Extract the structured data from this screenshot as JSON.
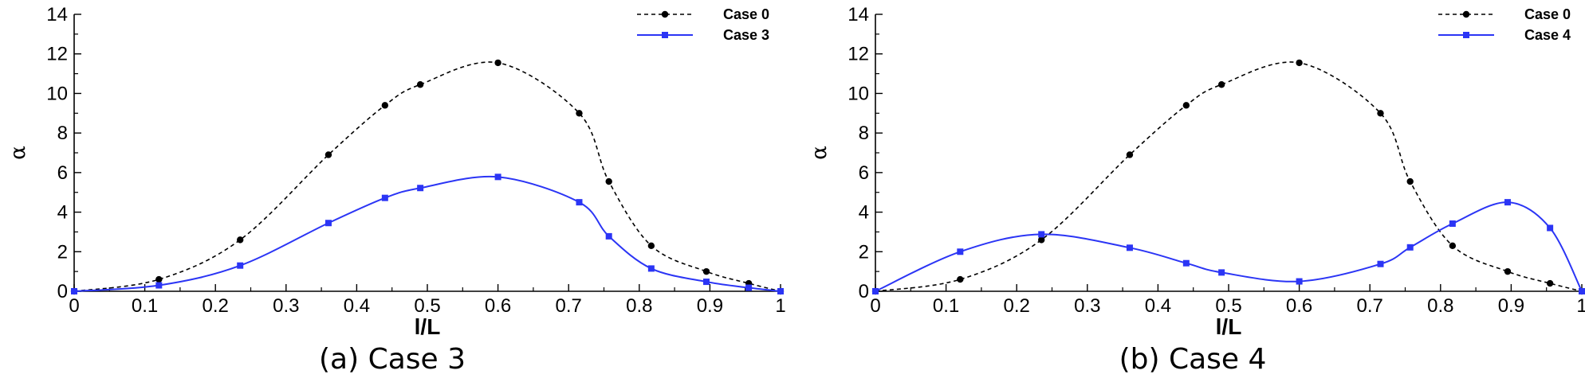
{
  "chart_data": [
    {
      "type": "line",
      "caption": "(a) Case 3",
      "xlabel": "l/L",
      "ylabel": "α",
      "xlim": [
        0,
        1
      ],
      "ylim": [
        0,
        14
      ],
      "xticks": [
        0,
        0.1,
        0.2,
        0.3,
        0.4,
        0.5,
        0.6,
        0.7,
        0.8,
        0.9,
        1
      ],
      "xtick_labels": [
        "0",
        "0.1",
        "0.2",
        "0.3",
        "0.4",
        "0.5",
        "0.6",
        "0.7",
        "0.8",
        "0.9",
        "1"
      ],
      "yticks": [
        0,
        2,
        4,
        6,
        8,
        10,
        12,
        14
      ],
      "ytick_labels": [
        "0",
        "2",
        "4",
        "6",
        "8",
        "10",
        "12",
        "14"
      ],
      "grid": false,
      "legend_position": "top-right",
      "series": [
        {
          "name": "Case 0",
          "color": "#000000",
          "line_style": "dashed",
          "marker": "circle",
          "x": [
            0,
            0.12,
            0.235,
            0.36,
            0.44,
            0.49,
            0.6,
            0.715,
            0.757,
            0.817,
            0.895,
            0.955,
            1
          ],
          "y": [
            0,
            0.6,
            2.6,
            6.9,
            9.4,
            10.45,
            11.55,
            9.0,
            5.55,
            2.3,
            1.0,
            0.4,
            0
          ]
        },
        {
          "name": "Case 3",
          "color": "#2b35f5",
          "line_style": "solid",
          "marker": "square",
          "x": [
            0,
            0.12,
            0.235,
            0.36,
            0.44,
            0.49,
            0.6,
            0.715,
            0.757,
            0.817,
            0.895,
            0.955,
            1
          ],
          "y": [
            0,
            0.3,
            1.3,
            3.45,
            4.72,
            5.22,
            5.78,
            4.5,
            2.78,
            1.15,
            0.48,
            0.18,
            0
          ]
        }
      ]
    },
    {
      "type": "line",
      "caption": "(b) Case 4",
      "xlabel": "l/L",
      "ylabel": "α",
      "xlim": [
        0,
        1
      ],
      "ylim": [
        0,
        14
      ],
      "xticks": [
        0,
        0.1,
        0.2,
        0.3,
        0.4,
        0.5,
        0.6,
        0.7,
        0.8,
        0.9,
        1
      ],
      "xtick_labels": [
        "0",
        "0.1",
        "0.2",
        "0.3",
        "0.4",
        "0.5",
        "0.6",
        "0.7",
        "0.8",
        "0.9",
        "1"
      ],
      "yticks": [
        0,
        2,
        4,
        6,
        8,
        10,
        12,
        14
      ],
      "ytick_labels": [
        "0",
        "2",
        "4",
        "6",
        "8",
        "10",
        "12",
        "14"
      ],
      "grid": false,
      "legend_position": "top-right",
      "series": [
        {
          "name": "Case 0",
          "color": "#000000",
          "line_style": "dashed",
          "marker": "circle",
          "x": [
            0,
            0.12,
            0.235,
            0.36,
            0.44,
            0.49,
            0.6,
            0.715,
            0.757,
            0.817,
            0.895,
            0.955,
            1
          ],
          "y": [
            0,
            0.6,
            2.6,
            6.9,
            9.4,
            10.45,
            11.55,
            9.0,
            5.55,
            2.3,
            1.0,
            0.4,
            0
          ]
        },
        {
          "name": "Case 4",
          "color": "#2b35f5",
          "line_style": "solid",
          "marker": "square",
          "x": [
            0,
            0.12,
            0.235,
            0.36,
            0.44,
            0.49,
            0.6,
            0.715,
            0.757,
            0.817,
            0.895,
            0.955,
            1
          ],
          "y": [
            0,
            2.0,
            2.88,
            2.2,
            1.42,
            0.95,
            0.5,
            1.38,
            2.22,
            3.42,
            4.5,
            3.2,
            0
          ]
        }
      ]
    }
  ]
}
